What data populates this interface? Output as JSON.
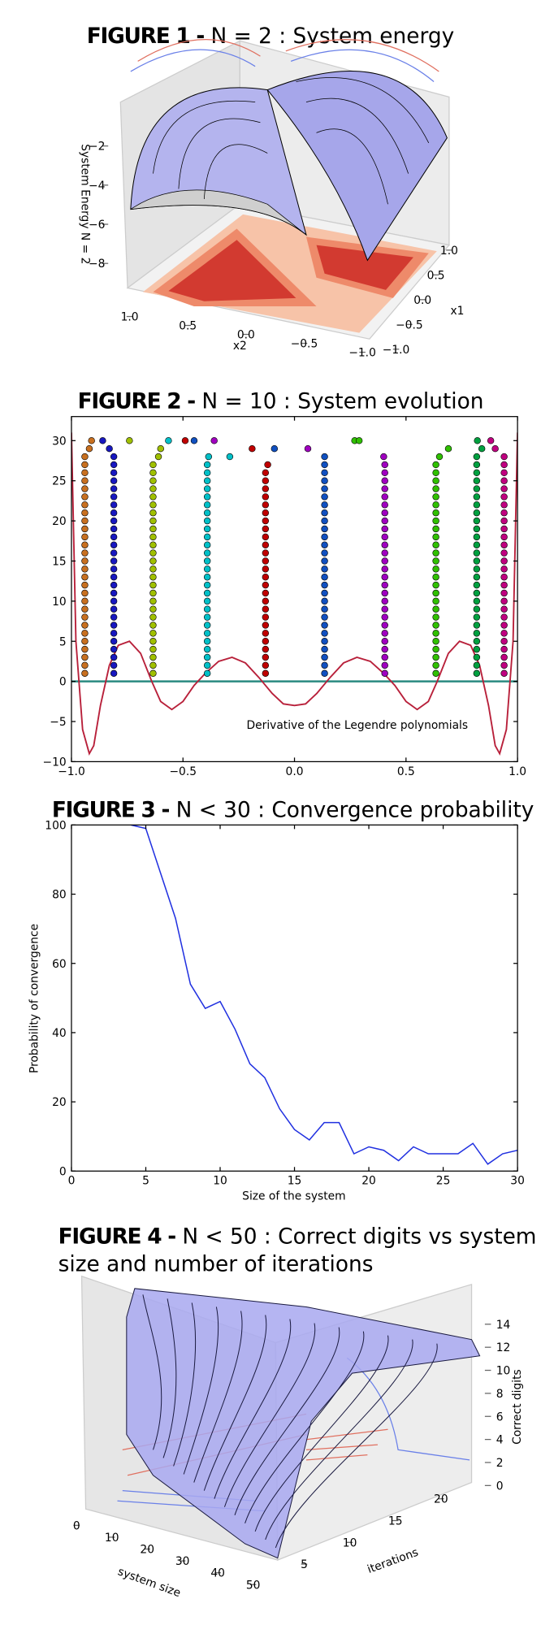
{
  "chart_data": [
    {
      "type": "surface3d",
      "title_prefix": "FIGURE 1 -",
      "title": "N = 2 : System energy",
      "zlabel": "System Energy N = 2",
      "xlabel": "x2",
      "ylabel": "x1",
      "zticks": [
        {
          "value": -2,
          "label": "−2"
        },
        {
          "value": -4,
          "label": "−4"
        },
        {
          "value": -6,
          "label": "−6"
        },
        {
          "value": -8,
          "label": "−8"
        }
      ],
      "xticks": [
        {
          "value": 1,
          "label": "1.0"
        },
        0.5,
        {
          "value": 0,
          "label": "0.0"
        },
        {
          "value": -0.5,
          "label": "−0.5"
        },
        {
          "value": -1,
          "label": "−1.0"
        }
      ],
      "yticks": [
        {
          "value": 1,
          "label": "1.0"
        },
        0.5,
        {
          "value": 0,
          "label": "0.0"
        },
        {
          "value": -0.5,
          "label": "−0.5"
        },
        {
          "value": -1,
          "label": "−1.0"
        }
      ]
    },
    {
      "type": "scatter",
      "title_prefix": "FIGURE 2 -",
      "title": "N = 10 : System evolution",
      "xlim": [
        -1,
        1
      ],
      "ylim": [
        -10,
        33
      ],
      "xticks": [
        {
          "value": -1,
          "label": "−1.0"
        },
        {
          "value": -0.5,
          "label": "−0.5"
        },
        {
          "value": 0,
          "label": "0.0"
        },
        0.5,
        {
          "value": 1,
          "label": "1.0"
        }
      ],
      "yticks": [
        30,
        25,
        20,
        15,
        10,
        5,
        0,
        {
          "value": -5,
          "label": "−5"
        },
        {
          "value": -10,
          "label": "−10"
        }
      ],
      "hline": 0,
      "hline_color": "#2a8a80",
      "curve": {
        "name": "Derivative of the Legendre polynomials",
        "color": "#b8203a",
        "x": [
          -1,
          -0.98,
          -0.95,
          -0.92,
          -0.9,
          -0.87,
          -0.83,
          -0.79,
          -0.74,
          -0.69,
          -0.64,
          -0.6,
          -0.55,
          -0.5,
          -0.45,
          -0.4,
          -0.34,
          -0.28,
          -0.22,
          -0.16,
          -0.1,
          -0.05,
          0,
          0.05,
          0.1,
          0.16,
          0.22,
          0.28,
          0.34,
          0.4,
          0.45,
          0.5,
          0.55,
          0.6,
          0.64,
          0.69,
          0.74,
          0.79,
          0.83,
          0.87,
          0.9,
          0.92,
          0.95,
          0.98,
          1
        ],
        "values": [
          31,
          5,
          -6,
          -9,
          -8,
          -3,
          2,
          4.5,
          5,
          3.5,
          0,
          -2.5,
          -3.5,
          -2.5,
          -0.5,
          1,
          2.5,
          3,
          2.3,
          0.5,
          -1.5,
          -2.8,
          -3,
          -2.8,
          -1.5,
          0.5,
          2.3,
          3,
          2.5,
          1,
          -0.5,
          -2.5,
          -3.5,
          -2.5,
          0,
          3.5,
          5,
          4.5,
          2,
          -3,
          -8,
          -9,
          -6,
          5,
          31
        ]
      },
      "series": [
        {
          "color": "#c87020",
          "x": -0.94,
          "y": [
            1,
            2,
            3,
            4,
            5,
            6,
            7,
            8,
            9,
            10,
            11,
            12,
            13,
            14,
            15,
            16,
            17,
            18,
            19,
            20,
            21,
            22,
            23,
            24,
            25,
            26,
            27,
            28
          ],
          "extra_x": [
            -0.92,
            -0.91
          ],
          "extra_y": [
            29,
            30
          ]
        },
        {
          "color": "#1818c0",
          "x": -0.81,
          "y": [
            1,
            2,
            3,
            4,
            5,
            6,
            7,
            8,
            9,
            10,
            11,
            12,
            13,
            14,
            15,
            16,
            17,
            18,
            19,
            20,
            21,
            22,
            23,
            24,
            25,
            26,
            27,
            28
          ],
          "extra_x": [
            -0.86,
            -0.83
          ],
          "extra_y": [
            30,
            29
          ]
        },
        {
          "color": "#a0c000",
          "x": -0.634,
          "y": [
            1,
            2,
            3,
            4,
            5,
            6,
            7,
            8,
            9,
            10,
            11,
            12,
            13,
            14,
            15,
            16,
            17,
            18,
            19,
            20,
            21,
            22,
            23,
            24,
            25,
            26,
            27
          ],
          "extra_x": [
            -0.61,
            -0.6,
            -0.74
          ],
          "extra_y": [
            28,
            29,
            30
          ]
        },
        {
          "color": "#00c0c8",
          "x": -0.391,
          "y": [
            1,
            2,
            3,
            4,
            5,
            6,
            7,
            8,
            9,
            10,
            11,
            12,
            13,
            14,
            15,
            16,
            17,
            18,
            19,
            20,
            21,
            22,
            23,
            24,
            25,
            26,
            27
          ],
          "extra_x": [
            -0.385,
            -0.29,
            -0.565
          ],
          "extra_y": [
            28,
            28,
            30
          ]
        },
        {
          "color": "#c00000",
          "x": -0.13,
          "y": [
            1,
            2,
            3,
            4,
            5,
            6,
            7,
            8,
            9,
            10,
            11,
            12,
            13,
            14,
            15,
            16,
            17,
            18,
            19,
            20,
            21,
            22,
            23,
            24,
            25,
            26
          ],
          "extra_x": [
            -0.12,
            -0.19,
            -0.49
          ],
          "extra_y": [
            27,
            29,
            30
          ]
        },
        {
          "color": "#1050c0",
          "x": 0.135,
          "y": [
            1,
            2,
            3,
            4,
            5,
            6,
            7,
            8,
            9,
            10,
            11,
            12,
            13,
            14,
            15,
            16,
            17,
            18,
            19,
            20,
            21,
            22,
            23,
            24,
            25,
            26,
            27,
            28
          ],
          "extra_x": [
            -0.09,
            -0.45
          ],
          "extra_y": [
            29,
            30
          ]
        },
        {
          "color": "#a000c0",
          "x": 0.405,
          "y": [
            1,
            2,
            3,
            4,
            5,
            6,
            7,
            8,
            9,
            10,
            11,
            12,
            13,
            14,
            15,
            16,
            17,
            18,
            19,
            20,
            21,
            22,
            23,
            24,
            25,
            26,
            27
          ],
          "extra_x": [
            0.4,
            0.06,
            -0.36
          ],
          "extra_y": [
            28,
            29,
            30
          ]
        },
        {
          "color": "#30c000",
          "x": 0.634,
          "y": [
            1,
            2,
            3,
            4,
            5,
            6,
            7,
            8,
            9,
            10,
            11,
            12,
            13,
            14,
            15,
            16,
            17,
            18,
            19,
            20,
            21,
            22,
            23,
            24,
            25,
            26,
            27
          ],
          "extra_x": [
            0.65,
            0.69,
            0.27,
            0.29
          ],
          "extra_y": [
            28,
            29,
            30,
            30
          ]
        },
        {
          "color": "#00a040",
          "x": 0.817,
          "y": [
            1,
            2,
            3,
            4,
            5,
            6,
            7,
            8,
            9,
            10,
            11,
            12,
            13,
            14,
            15,
            16,
            17,
            18,
            19,
            20,
            21,
            22,
            23,
            24,
            25,
            26,
            27,
            28
          ],
          "extra_x": [
            0.84,
            0.82
          ],
          "extra_y": [
            29,
            30
          ]
        },
        {
          "color": "#c00080",
          "x": 0.94,
          "y": [
            1,
            2,
            3,
            4,
            5,
            6,
            7,
            8,
            9,
            10,
            11,
            12,
            13,
            14,
            15,
            16,
            17,
            18,
            19,
            20,
            21,
            22,
            23,
            24,
            25,
            26,
            27,
            28
          ],
          "extra_x": [
            0.9,
            0.88
          ],
          "extra_y": [
            29,
            30
          ]
        }
      ]
    },
    {
      "type": "line",
      "title_prefix": "FIGURE 3 -",
      "title": "N < 30 : Convergence probability",
      "xlabel": "Size of the system",
      "ylabel": "Probability of convergence",
      "xlim": [
        0,
        30
      ],
      "ylim": [
        0,
        100
      ],
      "xticks": [
        0,
        5,
        10,
        15,
        20,
        25,
        30
      ],
      "yticks": [
        0,
        20,
        40,
        60,
        80,
        100
      ],
      "color": "#2030e0",
      "x": [
        4,
        5,
        6,
        7,
        8,
        9,
        10,
        11,
        12,
        13,
        14,
        15,
        16,
        17,
        18,
        19,
        20,
        21,
        22,
        23,
        24,
        25,
        26,
        27,
        28,
        29,
        30
      ],
      "values": [
        100,
        99,
        86,
        73,
        54,
        47,
        49,
        41,
        31,
        27,
        18,
        12,
        9,
        14,
        14,
        5,
        7,
        6,
        3,
        7,
        5,
        5,
        5,
        8,
        2,
        5,
        6
      ]
    },
    {
      "type": "surface3d",
      "title_prefix": "FIGURE 4 -",
      "title": [
        "N < 50 : Correct digits vs system",
        "size and number of iterations"
      ],
      "zlabel": "Correct digits",
      "xlabel": "system size",
      "ylabel": "iterations",
      "zticks": [
        0,
        2,
        4,
        6,
        8,
        10,
        12,
        14
      ],
      "xticks": [
        0,
        10,
        20,
        30,
        40,
        50
      ],
      "yticks": [
        5,
        10,
        15,
        20
      ]
    }
  ]
}
